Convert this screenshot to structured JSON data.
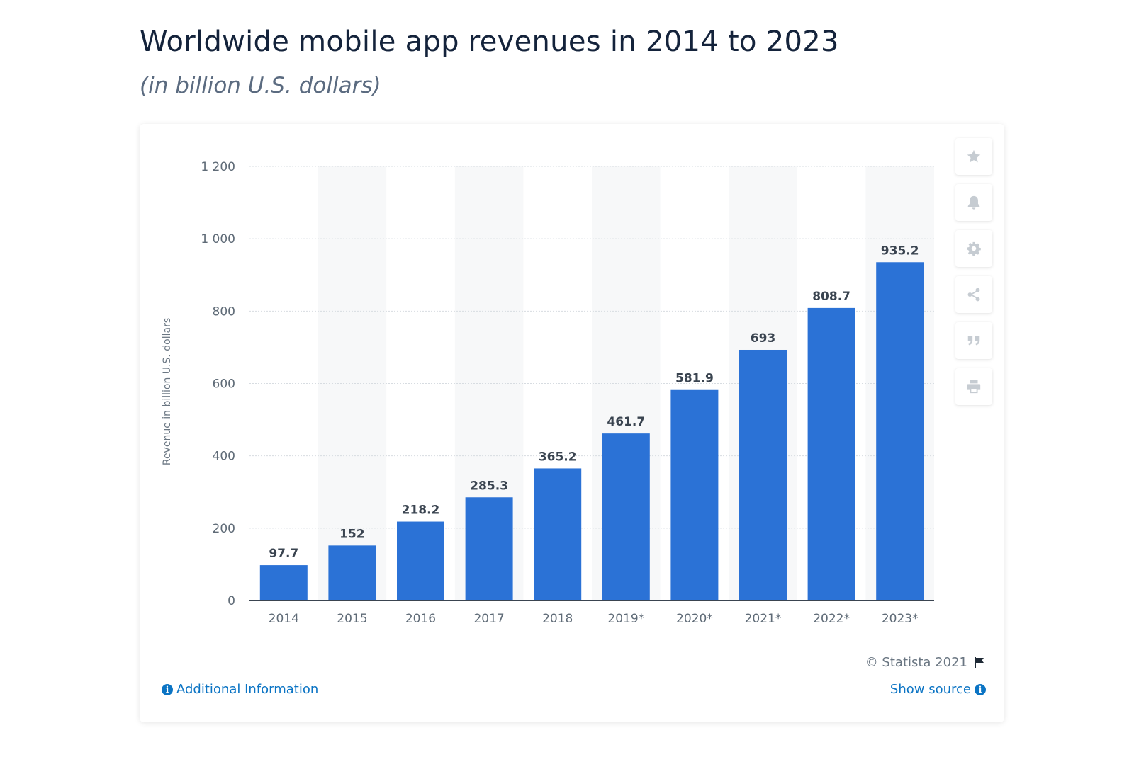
{
  "header": {
    "title": "Worldwide mobile app revenues in 2014 to 2023",
    "subtitle": "(in billion U.S. dollars)"
  },
  "chart_data": {
    "type": "bar",
    "categories": [
      "2014",
      "2015",
      "2016",
      "2017",
      "2018",
      "2019*",
      "2020*",
      "2021*",
      "2022*",
      "2023*"
    ],
    "values": [
      97.7,
      152,
      218.2,
      285.3,
      365.2,
      461.7,
      581.9,
      693,
      808.7,
      935.2
    ],
    "value_labels": [
      "97.7",
      "152",
      "218.2",
      "285.3",
      "365.2",
      "461.7",
      "581.9",
      "693",
      "808.7",
      "935.2"
    ],
    "ylabel": "Revenue in billion U.S. dollars",
    "ylim": [
      0,
      1200
    ],
    "yticks": [
      0,
      200,
      400,
      600,
      800,
      1000,
      1200
    ],
    "ytick_labels": [
      "0",
      "200",
      "400",
      "600",
      "800",
      "1 000",
      "1 200"
    ],
    "grid": true,
    "bar_color": "#2b72d6"
  },
  "toolbar": {
    "icons": [
      "star-icon",
      "bell-icon",
      "gear-icon",
      "share-icon",
      "quote-icon",
      "print-icon"
    ]
  },
  "footer": {
    "copyright": "© Statista 2021",
    "additional_info": "Additional Information",
    "show_source": "Show source"
  }
}
